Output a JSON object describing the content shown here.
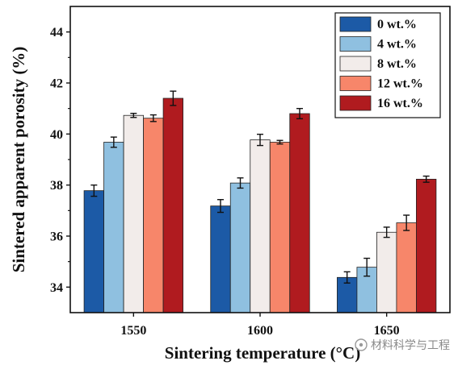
{
  "chart_data": {
    "type": "bar",
    "categories": [
      "1550",
      "1600",
      "1650"
    ],
    "series": [
      {
        "name": "0 wt.%",
        "color": "#1c5aa6",
        "values": [
          37.78,
          37.18,
          34.38
        ],
        "errors": [
          0.22,
          0.25,
          0.22
        ]
      },
      {
        "name": "4 wt.%",
        "color": "#8fc0e0",
        "values": [
          39.68,
          38.08,
          34.78
        ],
        "errors": [
          0.2,
          0.2,
          0.35
        ]
      },
      {
        "name": "8 wt.%",
        "color": "#f2ecea",
        "values": [
          40.73,
          39.77,
          36.15
        ],
        "errors": [
          0.08,
          0.22,
          0.2
        ]
      },
      {
        "name": "12 wt.%",
        "color": "#f7866a",
        "values": [
          40.62,
          39.68,
          36.52
        ],
        "errors": [
          0.13,
          0.07,
          0.3
        ]
      },
      {
        "name": "16 wt.%",
        "color": "#b01b1f",
        "values": [
          41.4,
          40.8,
          38.23
        ],
        "errors": [
          0.28,
          0.2,
          0.12
        ]
      }
    ],
    "xlabel": "Sintering temperature (°C)",
    "ylabel": "Sintered apparent porosity (%)",
    "ylim": [
      33,
      45
    ],
    "yticks": [
      "34",
      "36",
      "38",
      "40",
      "42",
      "44"
    ],
    "legend_position": "top-right",
    "grid": false
  },
  "watermark": "材料科学与工程"
}
